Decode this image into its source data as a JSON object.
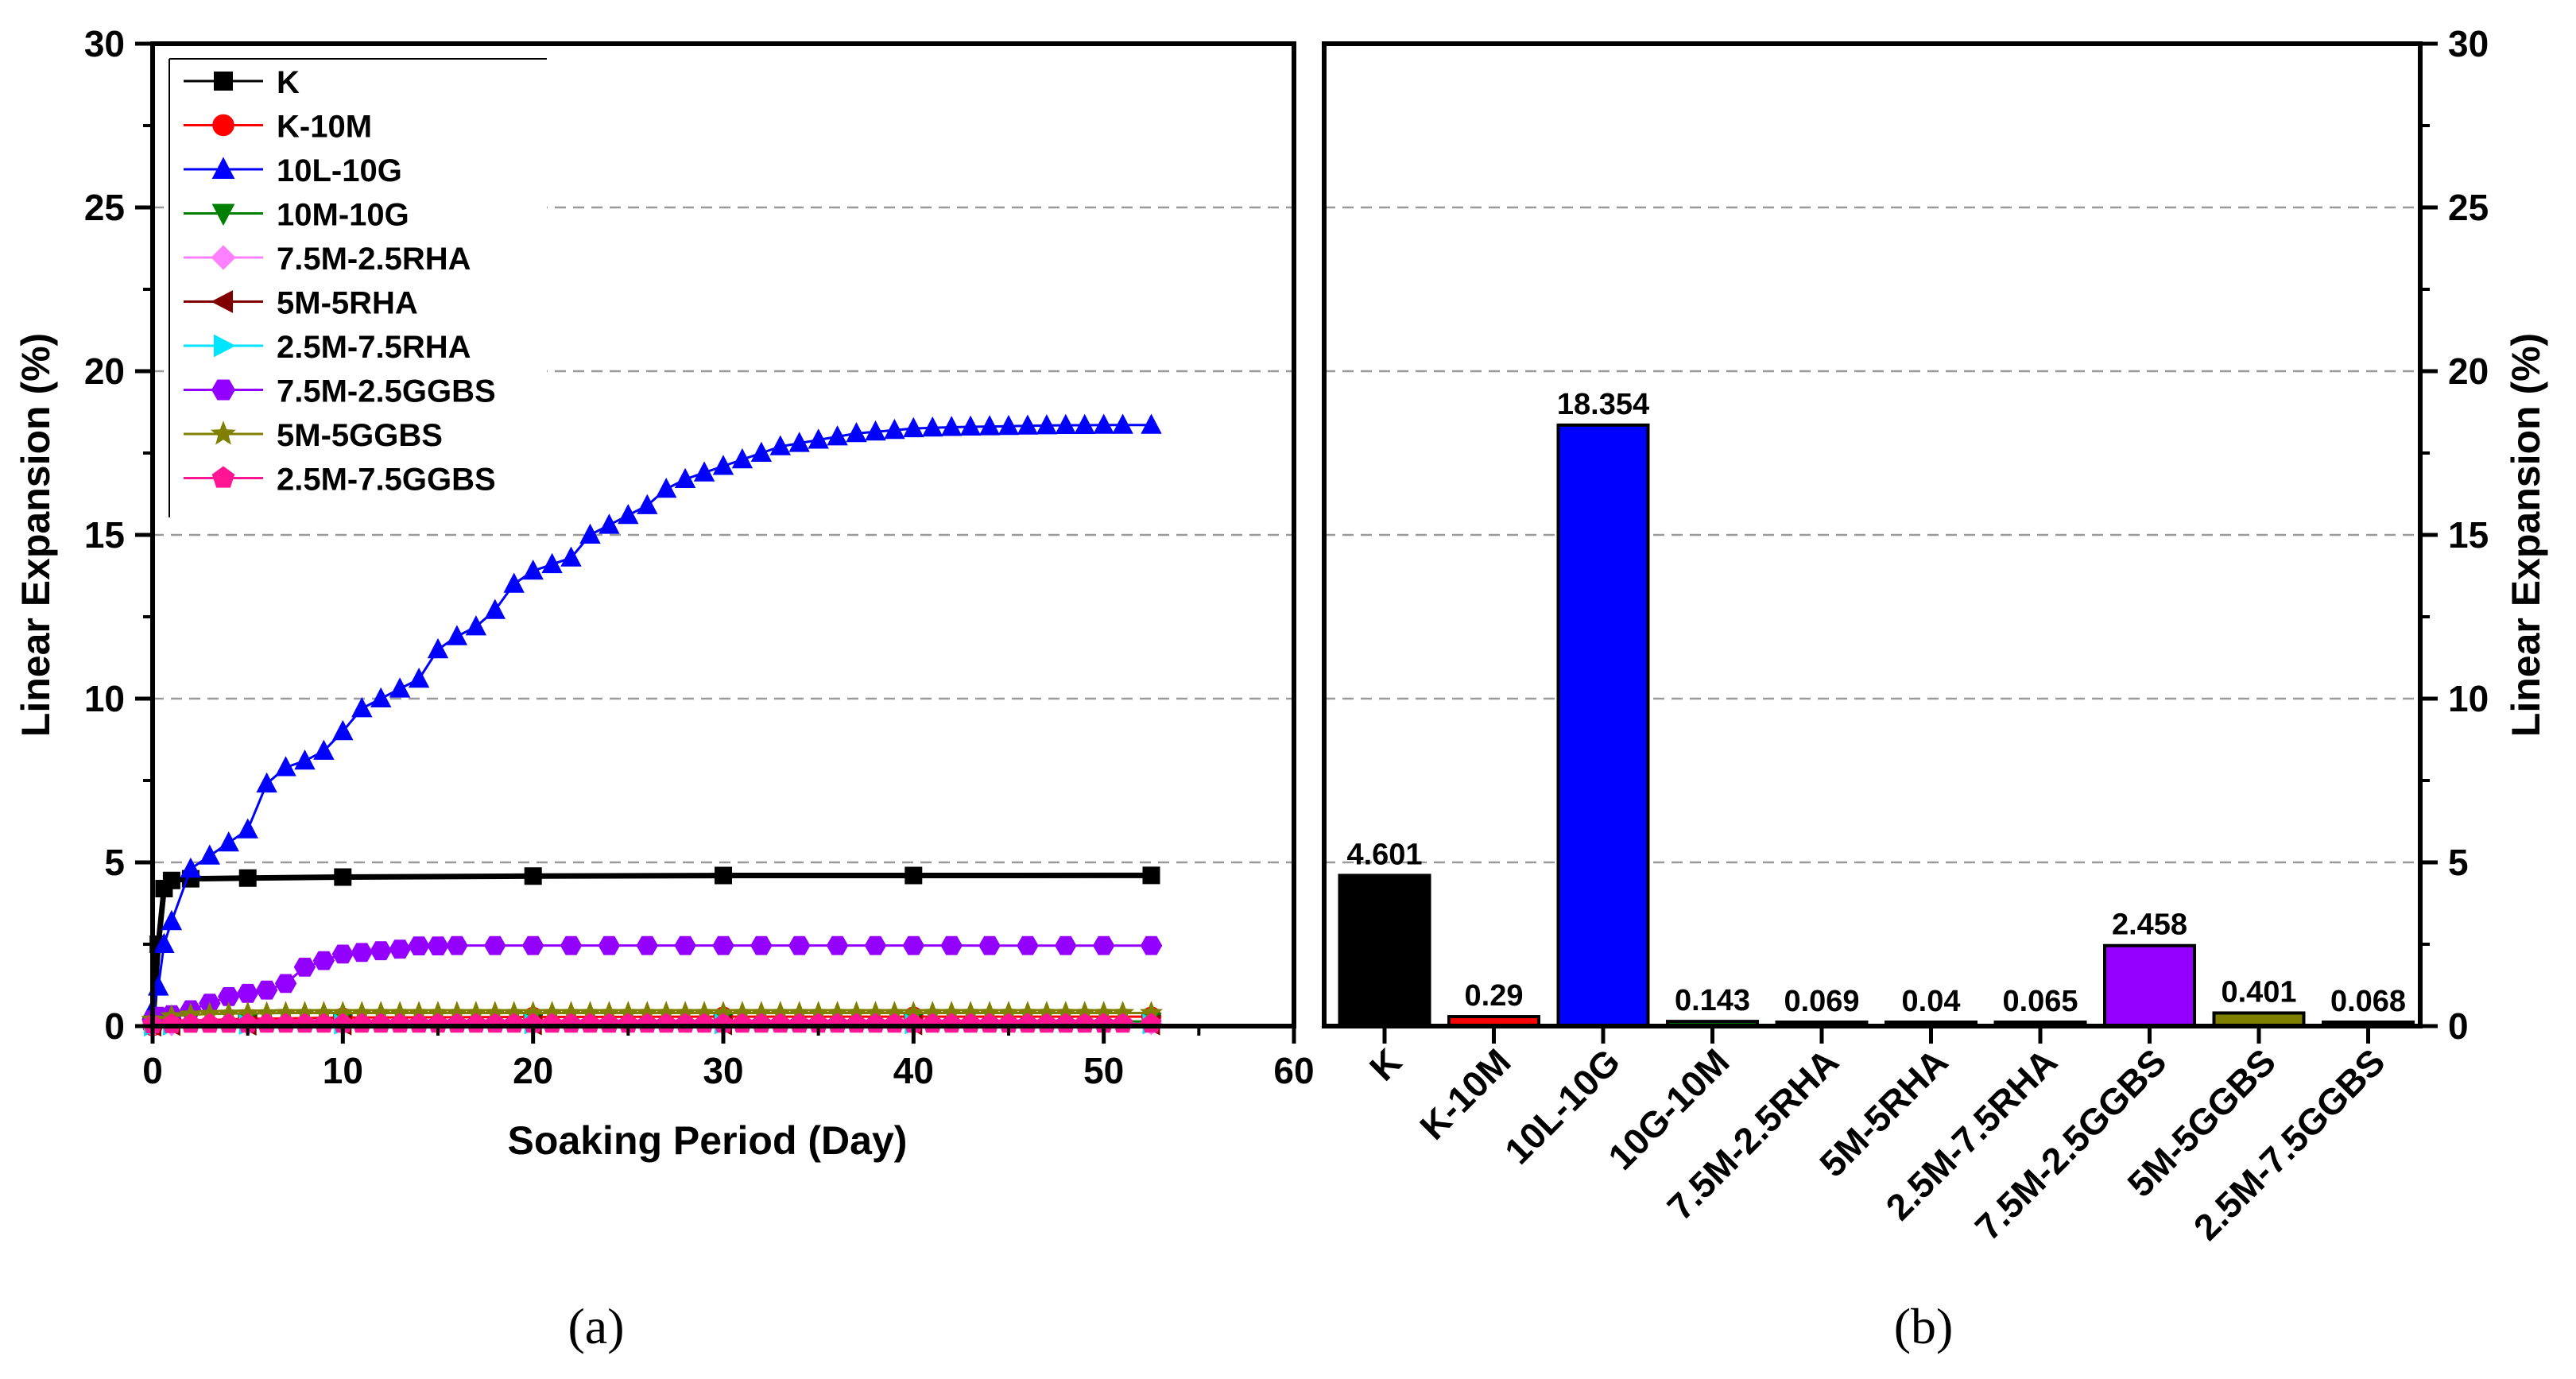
{
  "chart_data": [
    {
      "type": "line",
      "panel_label": "(a)",
      "xlabel": "Soaking Period (Day)",
      "ylabel": "Linear Expansion (%)",
      "xlim": [
        0,
        60
      ],
      "ylim": [
        0,
        30
      ],
      "xticks": [
        0,
        10,
        20,
        30,
        40,
        50,
        60
      ],
      "yticks": [
        0,
        5,
        10,
        15,
        20,
        25,
        30
      ],
      "grid": "horizontal dashed",
      "legend_position": "top-left",
      "series": [
        {
          "name": "K",
          "color": "#000000",
          "marker": "square",
          "x": [
            0,
            0.3,
            0.6,
            1,
            2,
            5,
            10,
            20,
            30,
            40,
            52.5
          ],
          "y": [
            0,
            2.5,
            4.2,
            4.45,
            4.5,
            4.52,
            4.55,
            4.58,
            4.6,
            4.6,
            4.601
          ]
        },
        {
          "name": "K-10M",
          "color": "#ff0000",
          "marker": "circle",
          "x": [
            0,
            1,
            5,
            10,
            20,
            30,
            40,
            52.5
          ],
          "y": [
            0,
            0.15,
            0.22,
            0.26,
            0.28,
            0.29,
            0.29,
            0.29
          ]
        },
        {
          "name": "10L-10G",
          "color": "#0000ff",
          "marker": "triangle-up",
          "x": [
            0,
            0.3,
            0.6,
            1,
            2,
            3,
            4,
            5,
            6,
            7,
            8,
            9,
            10,
            11,
            12,
            13,
            14,
            15,
            16,
            17,
            18,
            19,
            20,
            21,
            22,
            23,
            24,
            25,
            26,
            27,
            28,
            29,
            30,
            31,
            32,
            33,
            34,
            35,
            36,
            37,
            38,
            39,
            40,
            41,
            42,
            43,
            44,
            45,
            46,
            47,
            48,
            49,
            50,
            51,
            52.5
          ],
          "y": [
            0.5,
            1.2,
            2.5,
            3.2,
            4.8,
            5.2,
            5.6,
            6.0,
            7.4,
            7.9,
            8.1,
            8.4,
            9.0,
            9.7,
            10.0,
            10.3,
            10.6,
            11.5,
            11.9,
            12.2,
            12.7,
            13.5,
            13.9,
            14.1,
            14.3,
            15.0,
            15.3,
            15.6,
            15.9,
            16.4,
            16.7,
            16.9,
            17.1,
            17.3,
            17.5,
            17.7,
            17.8,
            17.9,
            18.0,
            18.1,
            18.15,
            18.2,
            18.25,
            18.27,
            18.29,
            18.3,
            18.31,
            18.32,
            18.33,
            18.34,
            18.35,
            18.35,
            18.354,
            18.354,
            18.354
          ]
        },
        {
          "name": "10M-10G",
          "color": "#008000",
          "marker": "triangle-down",
          "x": [
            0,
            1,
            5,
            10,
            20,
            30,
            40,
            52.5
          ],
          "y": [
            0,
            0.08,
            0.11,
            0.13,
            0.14,
            0.143,
            0.143,
            0.143
          ]
        },
        {
          "name": "7.5M-2.5RHA",
          "color": "#ff80ff",
          "marker": "diamond",
          "x": [
            0,
            1,
            5,
            10,
            20,
            30,
            40,
            52.5
          ],
          "y": [
            0,
            0.04,
            0.06,
            0.065,
            0.068,
            0.069,
            0.069,
            0.069
          ]
        },
        {
          "name": "5M-5RHA",
          "color": "#800000",
          "marker": "triangle-left",
          "x": [
            0,
            1,
            5,
            10,
            20,
            30,
            40,
            52.5
          ],
          "y": [
            0,
            0.02,
            0.03,
            0.035,
            0.04,
            0.04,
            0.04,
            0.04
          ]
        },
        {
          "name": "2.5M-7.5RHA",
          "color": "#00e5ff",
          "marker": "triangle-right",
          "x": [
            0,
            1,
            5,
            10,
            20,
            30,
            40,
            52.5
          ],
          "y": [
            0,
            0.03,
            0.05,
            0.06,
            0.065,
            0.065,
            0.065,
            0.065
          ]
        },
        {
          "name": "7.5M-2.5GGBS",
          "color": "#9400ff",
          "marker": "hexagon",
          "x": [
            0,
            0.3,
            1,
            2,
            3,
            4,
            5,
            6,
            7,
            8,
            9,
            10,
            11,
            12,
            13,
            14,
            15,
            16,
            18,
            20,
            22,
            24,
            26,
            28,
            30,
            32,
            34,
            36,
            38,
            40,
            42,
            44,
            46,
            48,
            50,
            52.5
          ],
          "y": [
            0.2,
            0.3,
            0.35,
            0.5,
            0.7,
            0.9,
            1.0,
            1.1,
            1.3,
            1.8,
            2.0,
            2.2,
            2.25,
            2.3,
            2.35,
            2.45,
            2.45,
            2.46,
            2.46,
            2.46,
            2.46,
            2.46,
            2.46,
            2.46,
            2.46,
            2.46,
            2.46,
            2.46,
            2.46,
            2.46,
            2.46,
            2.458,
            2.458,
            2.458,
            2.458,
            2.458
          ]
        },
        {
          "name": "5M-5GGBS",
          "color": "#808000",
          "marker": "star",
          "x": [
            0,
            1,
            2,
            3,
            4,
            5,
            6,
            7,
            8,
            9,
            10,
            11,
            12,
            13,
            14,
            15,
            16,
            17,
            18,
            19,
            20,
            21,
            22,
            23,
            24,
            25,
            26,
            27,
            28,
            29,
            30,
            31,
            32,
            33,
            34,
            35,
            36,
            37,
            38,
            39,
            40,
            41,
            42,
            43,
            44,
            45,
            46,
            47,
            48,
            49,
            50,
            51,
            52.5
          ],
          "y": [
            0.2,
            0.3,
            0.35,
            0.37,
            0.38,
            0.39,
            0.39,
            0.4,
            0.4,
            0.4,
            0.4,
            0.4,
            0.4,
            0.4,
            0.4,
            0.4,
            0.4,
            0.4,
            0.4,
            0.4,
            0.4,
            0.4,
            0.4,
            0.4,
            0.4,
            0.4,
            0.4,
            0.4,
            0.4,
            0.4,
            0.4,
            0.4,
            0.4,
            0.4,
            0.4,
            0.4,
            0.4,
            0.4,
            0.4,
            0.4,
            0.401,
            0.401,
            0.401,
            0.401,
            0.401,
            0.401,
            0.401,
            0.401,
            0.401,
            0.401,
            0.401,
            0.401,
            0.401
          ]
        },
        {
          "name": "2.5M-7.5GGBS",
          "color": "#ff1493",
          "marker": "pentagon",
          "x": [
            0,
            1,
            2,
            3,
            4,
            5,
            6,
            7,
            8,
            9,
            10,
            11,
            12,
            13,
            14,
            15,
            16,
            17,
            18,
            19,
            20,
            21,
            22,
            23,
            24,
            25,
            26,
            27,
            28,
            29,
            30,
            31,
            32,
            33,
            34,
            35,
            36,
            37,
            38,
            39,
            40,
            41,
            42,
            43,
            44,
            45,
            46,
            47,
            48,
            49,
            50,
            51,
            52.5
          ],
          "y": [
            0.05,
            0.06,
            0.065,
            0.066,
            0.067,
            0.068,
            0.068,
            0.068,
            0.068,
            0.068,
            0.068,
            0.068,
            0.068,
            0.068,
            0.068,
            0.068,
            0.068,
            0.068,
            0.068,
            0.068,
            0.068,
            0.068,
            0.068,
            0.068,
            0.068,
            0.068,
            0.068,
            0.068,
            0.068,
            0.068,
            0.068,
            0.068,
            0.068,
            0.068,
            0.068,
            0.068,
            0.068,
            0.068,
            0.068,
            0.068,
            0.068,
            0.068,
            0.068,
            0.068,
            0.068,
            0.068,
            0.068,
            0.068,
            0.068,
            0.068,
            0.068,
            0.068,
            0.068
          ]
        }
      ]
    },
    {
      "type": "bar",
      "panel_label": "(b)",
      "xlabel": "",
      "ylabel": "Linear Expansion (%)",
      "ylim": [
        0,
        30
      ],
      "yticks": [
        0,
        5,
        10,
        15,
        20,
        25,
        30
      ],
      "grid": "horizontal dashed",
      "categories": [
        "K",
        "K-10M",
        "10L-10G",
        "10G-10M",
        "7.5M-2.5RHA",
        "5M-5RHA",
        "2.5M-7.5RHA",
        "7.5M-2.5GGBS",
        "5M-5GGBS",
        "2.5M-7.5GGBS"
      ],
      "values": [
        4.601,
        0.29,
        18.354,
        0.143,
        0.069,
        0.04,
        0.065,
        2.458,
        0.401,
        0.068
      ],
      "value_labels": [
        "4.601",
        "0.29",
        "18.354",
        "0.143",
        "0.069",
        "0.04",
        "0.065",
        "2.458",
        "0.401",
        "0.068"
      ],
      "colors": [
        "#000000",
        "#ff0000",
        "#0000ff",
        "#008000",
        "#ff80ff",
        "#800000",
        "#00e5ff",
        "#9400ff",
        "#808000",
        "#ff1493"
      ]
    }
  ]
}
